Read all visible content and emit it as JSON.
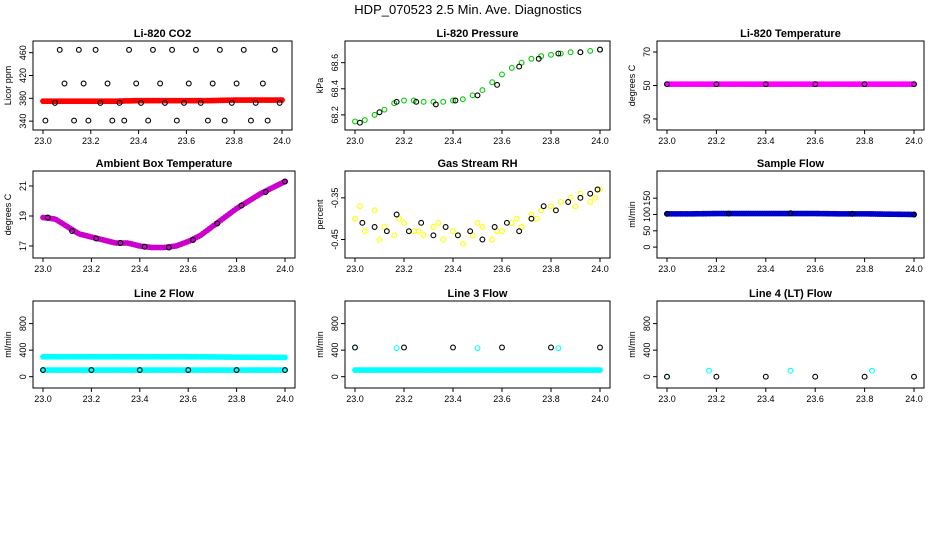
{
  "page": {
    "title": "HDP_070523  2.5 Min. Ave. Diagnostics"
  },
  "chart_data": [
    {
      "type": "scatter",
      "title": "Li-820 CO2",
      "ylabel": "Licor ppm",
      "xlim": [
        23.0,
        24.0
      ],
      "ylim": [
        335,
        470
      ],
      "xticks": [
        "23.0",
        "23.2",
        "23.4",
        "23.6",
        "23.8",
        "24.0"
      ],
      "yticks": [
        340,
        380,
        420,
        460
      ],
      "series": [
        {
          "color": "#ff0000",
          "style": "filled",
          "x": [
            23.0,
            23.1,
            23.2,
            23.3,
            23.4,
            23.5,
            23.6,
            23.7,
            23.8,
            23.9,
            24.0
          ],
          "y": [
            375,
            375,
            375,
            375,
            376,
            376,
            376,
            376,
            377,
            377,
            377
          ]
        },
        {
          "color": "#000000",
          "style": "open",
          "x": [
            23.01,
            23.05,
            23.07,
            23.09,
            23.13,
            23.15,
            23.17,
            23.19,
            23.22,
            23.24,
            23.27,
            23.29,
            23.32,
            23.34,
            23.36,
            23.39,
            23.41,
            23.44,
            23.46,
            23.49,
            23.51,
            23.54,
            23.56,
            23.59,
            23.61,
            23.64,
            23.66,
            23.69,
            23.71,
            23.74,
            23.76,
            23.79,
            23.81,
            23.84,
            23.87,
            23.89,
            23.92,
            23.94,
            23.97,
            23.99
          ],
          "y": [
            341,
            372,
            465,
            406,
            341,
            465,
            406,
            341,
            465,
            372,
            406,
            341,
            372,
            341,
            465,
            406,
            372,
            341,
            465,
            406,
            372,
            465,
            341,
            372,
            406,
            465,
            372,
            341,
            406,
            465,
            341,
            372,
            406,
            465,
            341,
            372,
            406,
            341,
            465,
            372
          ]
        }
      ]
    },
    {
      "type": "scatter",
      "title": "Li-820 Pressure",
      "ylabel": "kPa",
      "xlim": [
        23.0,
        24.0
      ],
      "ylim": [
        68.13,
        68.72
      ],
      "xticks": [
        "23.0",
        "23.2",
        "23.4",
        "23.6",
        "23.8",
        "24.0"
      ],
      "yticks": [
        "68.2",
        "68.4",
        "68.6"
      ],
      "series": [
        {
          "color": "#00cc00",
          "style": "open",
          "x": [
            23.0,
            23.04,
            23.08,
            23.12,
            23.16,
            23.2,
            23.24,
            23.28,
            23.32,
            23.36,
            23.4,
            23.44,
            23.48,
            23.52,
            23.56,
            23.6,
            23.64,
            23.68,
            23.72,
            23.76,
            23.8,
            23.84,
            23.88,
            23.92,
            23.96,
            24.0
          ],
          "y": [
            68.15,
            68.16,
            68.2,
            68.24,
            68.29,
            68.31,
            68.31,
            68.3,
            68.3,
            68.3,
            68.31,
            68.32,
            68.35,
            68.39,
            68.45,
            68.51,
            68.56,
            68.6,
            68.63,
            68.65,
            68.66,
            68.67,
            68.68,
            68.68,
            68.69,
            68.7
          ]
        },
        {
          "color": "#000000",
          "style": "open",
          "x": [
            23.02,
            23.1,
            23.17,
            23.25,
            23.33,
            23.41,
            23.5,
            23.58,
            23.67,
            23.75,
            23.83,
            23.92,
            24.0
          ],
          "y": [
            68.14,
            68.22,
            68.3,
            68.3,
            68.28,
            68.31,
            68.35,
            68.43,
            68.57,
            68.63,
            68.67,
            68.68,
            68.7
          ]
        }
      ]
    },
    {
      "type": "scatter",
      "title": "Li-820 Temperature",
      "ylabel": "degrees C",
      "xlim": [
        23.0,
        24.0
      ],
      "ylim": [
        27,
        73
      ],
      "xticks": [
        "23.0",
        "23.2",
        "23.4",
        "23.6",
        "23.8",
        "24.0"
      ],
      "yticks": [
        30,
        50,
        70
      ],
      "series": [
        {
          "color": "#ff00ff",
          "style": "filled",
          "x": [
            23.0,
            23.2,
            23.4,
            23.6,
            23.8,
            24.0
          ],
          "y": [
            50.8,
            50.8,
            50.8,
            50.8,
            50.8,
            50.8
          ]
        },
        {
          "color": "#000000",
          "style": "open",
          "x": [
            23.0,
            23.2,
            23.4,
            23.6,
            23.8,
            24.0
          ],
          "y": [
            50.8,
            50.8,
            50.8,
            50.8,
            50.8,
            50.8
          ]
        }
      ]
    },
    {
      "type": "scatter",
      "title": "Ambient Box Temperature",
      "ylabel": "degrees C",
      "xlim": [
        23.0,
        24.0
      ],
      "ylim": [
        16.6,
        21.6
      ],
      "xticks": [
        "23.0",
        "23.2",
        "23.4",
        "23.6",
        "23.8",
        "24.0"
      ],
      "yticks": [
        17,
        19,
        21
      ],
      "series": [
        {
          "color": "#cc00cc",
          "style": "filled",
          "x": [
            23.0,
            23.05,
            23.1,
            23.15,
            23.2,
            23.25,
            23.3,
            23.35,
            23.4,
            23.45,
            23.5,
            23.55,
            23.6,
            23.65,
            23.7,
            23.75,
            23.8,
            23.85,
            23.9,
            23.95,
            24.0
          ],
          "y": [
            18.9,
            18.8,
            18.3,
            17.8,
            17.6,
            17.4,
            17.2,
            17.2,
            17.0,
            16.9,
            16.9,
            17.0,
            17.3,
            17.7,
            18.3,
            18.9,
            19.5,
            20.0,
            20.5,
            20.9,
            21.3
          ]
        },
        {
          "color": "#000000",
          "style": "open",
          "x": [
            23.02,
            23.12,
            23.22,
            23.32,
            23.42,
            23.52,
            23.62,
            23.72,
            23.82,
            23.92,
            24.0
          ],
          "y": [
            18.9,
            18.0,
            17.5,
            17.2,
            16.95,
            16.9,
            17.4,
            18.5,
            19.7,
            20.6,
            21.3
          ]
        }
      ]
    },
    {
      "type": "scatter",
      "title": "Gas Stream RH",
      "ylabel": "percent",
      "xlim": [
        23.0,
        24.0
      ],
      "ylim": [
        -0.48,
        -0.3
      ],
      "xticks": [
        "23.0",
        "23.2",
        "23.4",
        "23.6",
        "23.8",
        "24.0"
      ],
      "yticks": [
        "-0.45",
        "-0.35"
      ],
      "series": [
        {
          "color": "#ffff00",
          "style": "open",
          "x": [
            23.0,
            23.04,
            23.08,
            23.12,
            23.16,
            23.2,
            23.24,
            23.28,
            23.32,
            23.36,
            23.4,
            23.44,
            23.48,
            23.52,
            23.56,
            23.6,
            23.64,
            23.68,
            23.72,
            23.76,
            23.8,
            23.84,
            23.88,
            23.92,
            23.96,
            24.0,
            23.02,
            23.1,
            23.18,
            23.26,
            23.34,
            23.42,
            23.5,
            23.58,
            23.66,
            23.74,
            23.82,
            23.9,
            23.98
          ],
          "y": [
            -0.4,
            -0.43,
            -0.38,
            -0.42,
            -0.44,
            -0.41,
            -0.43,
            -0.44,
            -0.42,
            -0.45,
            -0.43,
            -0.46,
            -0.44,
            -0.42,
            -0.45,
            -0.43,
            -0.41,
            -0.42,
            -0.39,
            -0.38,
            -0.37,
            -0.36,
            -0.35,
            -0.34,
            -0.36,
            -0.33,
            -0.37,
            -0.45,
            -0.4,
            -0.43,
            -0.41,
            -0.44,
            -0.41,
            -0.43,
            -0.4,
            -0.4,
            -0.38,
            -0.37,
            -0.35
          ]
        },
        {
          "color": "#000000",
          "style": "open",
          "x": [
            23.03,
            23.08,
            23.13,
            23.17,
            23.22,
            23.27,
            23.32,
            23.37,
            23.42,
            23.47,
            23.52,
            23.57,
            23.62,
            23.67,
            23.72,
            23.77,
            23.82,
            23.87,
            23.92,
            23.96,
            23.99
          ],
          "y": [
            -0.41,
            -0.42,
            -0.43,
            -0.39,
            -0.43,
            -0.41,
            -0.44,
            -0.42,
            -0.44,
            -0.43,
            -0.45,
            -0.42,
            -0.41,
            -0.43,
            -0.4,
            -0.37,
            -0.38,
            -0.36,
            -0.35,
            -0.34,
            -0.33
          ]
        }
      ]
    },
    {
      "type": "scatter",
      "title": "Sample Flow",
      "ylabel": "ml/min",
      "xlim": [
        23.0,
        24.0
      ],
      "ylim": [
        -15,
        215
      ],
      "xticks": [
        "23.0",
        "23.2",
        "23.4",
        "23.6",
        "23.8",
        "24.0"
      ],
      "yticks": [
        0,
        50,
        100,
        150
      ],
      "series": [
        {
          "color": "#0000cc",
          "style": "filled",
          "x": [
            23.0,
            23.1,
            23.2,
            23.3,
            23.4,
            23.5,
            23.6,
            23.7,
            23.8,
            23.9,
            24.0
          ],
          "y": [
            102,
            102,
            103,
            103,
            103,
            103,
            103,
            102,
            102,
            101,
            100
          ]
        },
        {
          "color": "#000000",
          "style": "open",
          "x": [
            23.0,
            23.25,
            23.5,
            23.75,
            24.0
          ],
          "y": [
            102,
            103,
            104,
            102,
            100
          ]
        }
      ]
    },
    {
      "type": "scatter",
      "title": "Line 2 Flow",
      "ylabel": "ml/min",
      "xlim": [
        23.0,
        24.0
      ],
      "ylim": [
        -80,
        1050
      ],
      "xticks": [
        "23.0",
        "23.2",
        "23.4",
        "23.6",
        "23.8",
        "24.0"
      ],
      "yticks": [
        0,
        400,
        800
      ],
      "series": [
        {
          "color": "#00ffff",
          "style": "filled",
          "x": [
            23.0,
            23.2,
            23.4,
            23.6,
            23.8,
            24.0
          ],
          "y": [
            300,
            300,
            300,
            300,
            295,
            290
          ]
        },
        {
          "color": "#00ffff",
          "style": "filled",
          "x": [
            23.0,
            23.2,
            23.4,
            23.6,
            23.8,
            24.0
          ],
          "y": [
            100,
            100,
            100,
            100,
            100,
            100
          ]
        },
        {
          "color": "#000000",
          "style": "open",
          "x": [
            23.0,
            23.2,
            23.4,
            23.6,
            23.8,
            24.0
          ],
          "y": [
            100,
            100,
            100,
            100,
            100,
            100
          ]
        }
      ]
    },
    {
      "type": "scatter",
      "title": "Line 3 Flow",
      "ylabel": "ml/min",
      "xlim": [
        23.0,
        24.0
      ],
      "ylim": [
        -80,
        1050
      ],
      "xticks": [
        "23.0",
        "23.2",
        "23.4",
        "23.6",
        "23.8",
        "24.0"
      ],
      "yticks": [
        0,
        400,
        800
      ],
      "series": [
        {
          "color": "#00ffff",
          "style": "filled",
          "x": [
            23.0,
            23.2,
            23.4,
            23.6,
            23.8,
            24.0
          ],
          "y": [
            100,
            100,
            100,
            100,
            100,
            100
          ]
        },
        {
          "color": "#00ffff",
          "style": "open",
          "x": [
            23.0,
            23.17,
            23.5,
            23.83
          ],
          "y": [
            440,
            430,
            430,
            430
          ]
        },
        {
          "color": "#000000",
          "style": "open",
          "x": [
            23.0,
            23.2,
            23.4,
            23.6,
            23.8,
            24.0
          ],
          "y": [
            440,
            440,
            440,
            440,
            440,
            440
          ]
        }
      ]
    },
    {
      "type": "scatter",
      "title": "Line 4 (LT) Flow",
      "ylabel": "ml/min",
      "xlim": [
        23.0,
        24.0
      ],
      "ylim": [
        -80,
        1050
      ],
      "xticks": [
        "23.0",
        "23.2",
        "23.4",
        "23.6",
        "23.8",
        "24.0"
      ],
      "yticks": [
        0,
        400,
        800
      ],
      "series": [
        {
          "color": "#00ffff",
          "style": "open",
          "x": [
            23.0,
            23.17,
            23.5,
            23.83
          ],
          "y": [
            0,
            90,
            90,
            90
          ]
        },
        {
          "color": "#000000",
          "style": "open",
          "x": [
            23.0,
            23.2,
            23.4,
            23.6,
            23.8,
            24.0
          ],
          "y": [
            0,
            0,
            0,
            0,
            0,
            0
          ]
        }
      ]
    }
  ]
}
